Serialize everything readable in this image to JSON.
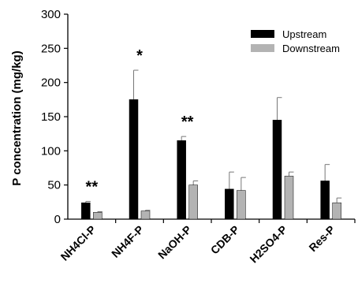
{
  "chart_data": {
    "type": "bar",
    "title": "",
    "xlabel": "",
    "ylabel": "P concentration (mg/kg)",
    "ylim": [
      0,
      300
    ],
    "yticks": [
      0,
      50,
      100,
      150,
      200,
      250,
      300
    ],
    "categories": [
      "NH4Cl-P",
      "NH4F-P",
      "NaOH-P",
      "CDB-P",
      "H2SO4-P",
      "Res-P"
    ],
    "series": [
      {
        "name": "Upstream",
        "color": "#000000",
        "values": [
          24,
          175,
          115,
          44,
          145,
          56
        ],
        "errors": [
          2,
          43,
          6,
          25,
          33,
          24
        ]
      },
      {
        "name": "Downstream",
        "color": "#b3b3b3",
        "values": [
          10,
          12,
          50,
          42,
          63,
          24
        ],
        "errors": [
          1,
          1,
          6,
          19,
          6,
          7
        ]
      }
    ],
    "annotations": [
      {
        "category": "NH4Cl-P",
        "text": "**"
      },
      {
        "category": "NH4F-P",
        "text": "*"
      },
      {
        "category": "NaOH-P",
        "text": "**"
      }
    ],
    "grid": false,
    "legend_position": "top-right"
  }
}
